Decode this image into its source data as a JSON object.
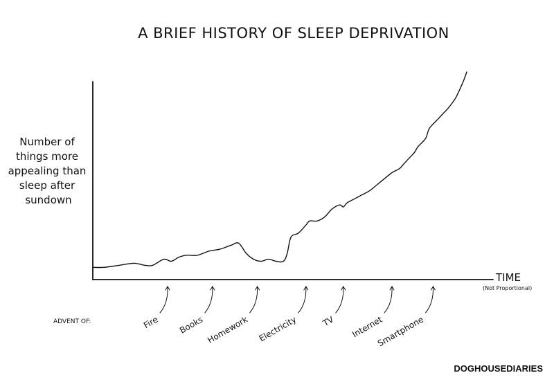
{
  "chart_data": {
    "type": "line",
    "title": "A BRIEF HISTORY OF SLEEP DEPRIVATION",
    "ylabel": [
      "Number of",
      "things more",
      "appealing than",
      "sleep after",
      "sundown"
    ],
    "xlabel": "TIME",
    "xlabel_note": "(Not Proportional)",
    "annotation_label": "ADVENT OF:",
    "xlim": [
      0,
      100
    ],
    "ylim": [
      0,
      100
    ],
    "grid": false,
    "legend": "none",
    "series": [
      {
        "x": [
          0,
          3,
          7,
          11,
          14,
          16,
          19,
          21,
          23,
          25,
          28,
          31,
          34,
          37,
          39,
          41,
          43,
          45,
          47,
          49,
          51,
          52,
          53,
          55,
          57,
          58,
          60,
          62,
          63,
          64,
          66,
          67,
          68,
          70,
          72,
          74,
          76,
          78,
          80,
          82,
          83,
          85,
          86,
          87,
          89,
          90,
          92,
          93,
          94,
          95,
          97,
          99,
          100
        ],
        "y": [
          3,
          3,
          4,
          5,
          4,
          4,
          7,
          6,
          8,
          9,
          9,
          11,
          12,
          14,
          15,
          10,
          7,
          6,
          7,
          6,
          6,
          10,
          18,
          20,
          24,
          26,
          26,
          28,
          30,
          32,
          34,
          33,
          35,
          37,
          39,
          41,
          44,
          47,
          50,
          52,
          54,
          58,
          60,
          63,
          67,
          72,
          76,
          78,
          80,
          82,
          87,
          95,
          100
        ]
      }
    ],
    "events": [
      {
        "label": "Fire",
        "x": 20
      },
      {
        "label": "Books",
        "x": 32
      },
      {
        "label": "Homework",
        "x": 44
      },
      {
        "label": "Electricity",
        "x": 57
      },
      {
        "label": "TV",
        "x": 67
      },
      {
        "label": "Internet",
        "x": 80
      },
      {
        "label": "Smartphone",
        "x": 91
      }
    ]
  },
  "credit": "DOGHOUSEDIARIES"
}
